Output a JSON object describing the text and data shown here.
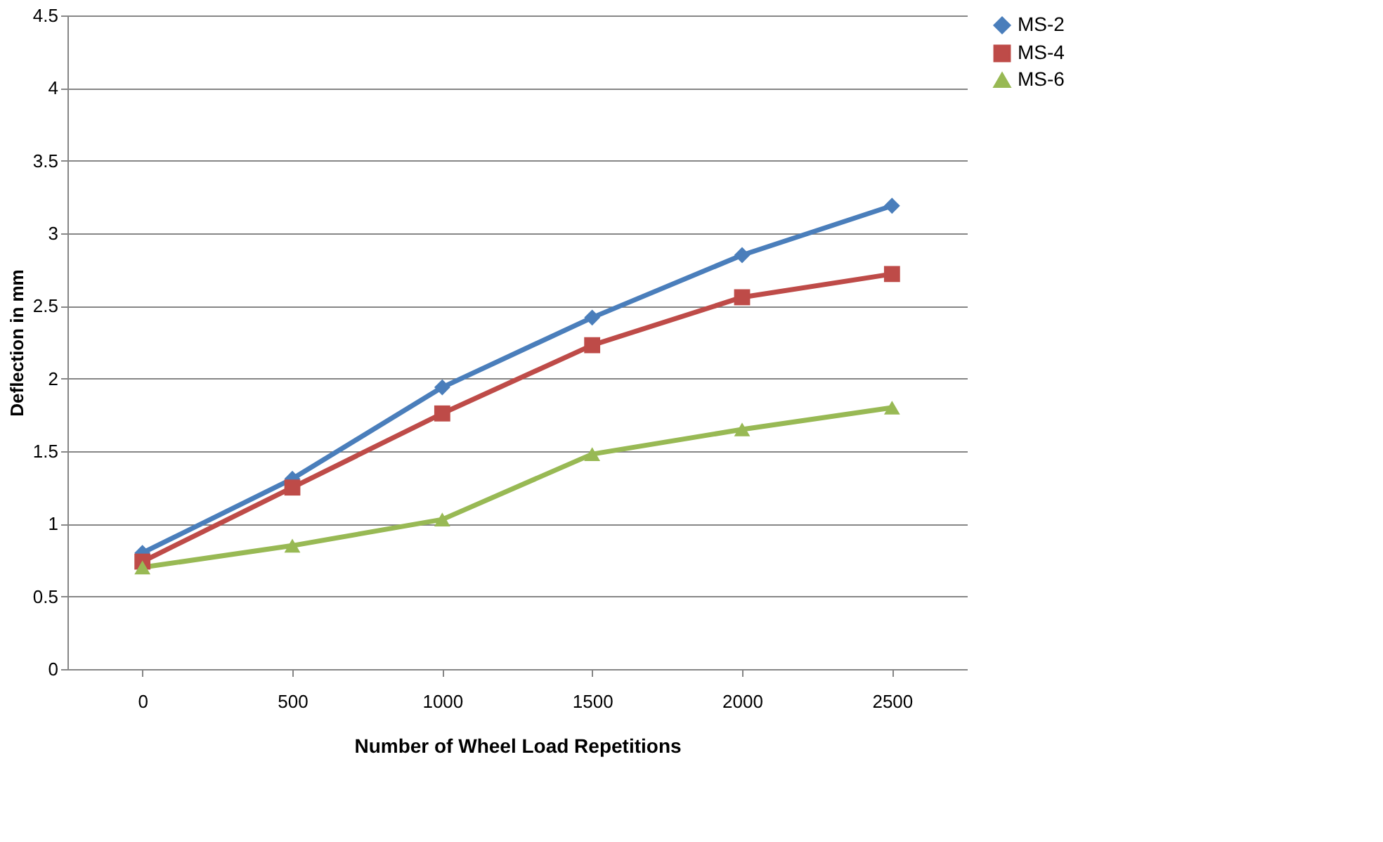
{
  "chart_data": {
    "type": "line",
    "xlabel": "Number of Wheel Load Repetitions",
    "ylabel": "Deflection in mm",
    "categories": [
      "0",
      "500",
      "1000",
      "1500",
      "2000",
      "2500"
    ],
    "series": [
      {
        "name": "MS-2",
        "color": "#4a7ebb",
        "marker": "diamond",
        "values": [
          0.8,
          1.31,
          1.94,
          2.42,
          2.85,
          3.19
        ]
      },
      {
        "name": "MS-4",
        "color": "#be4b48",
        "marker": "square",
        "values": [
          0.74,
          1.25,
          1.76,
          2.23,
          2.56,
          2.72
        ]
      },
      {
        "name": "MS-6",
        "color": "#98b954",
        "marker": "triangle",
        "values": [
          0.7,
          0.85,
          1.03,
          1.48,
          1.65,
          1.8
        ]
      }
    ],
    "ylim": [
      0,
      4.5
    ],
    "yticks": [
      0,
      0.5,
      1,
      1.5,
      2,
      2.5,
      3,
      3.5,
      4,
      4.5
    ],
    "grid": "y",
    "legend": "right"
  }
}
